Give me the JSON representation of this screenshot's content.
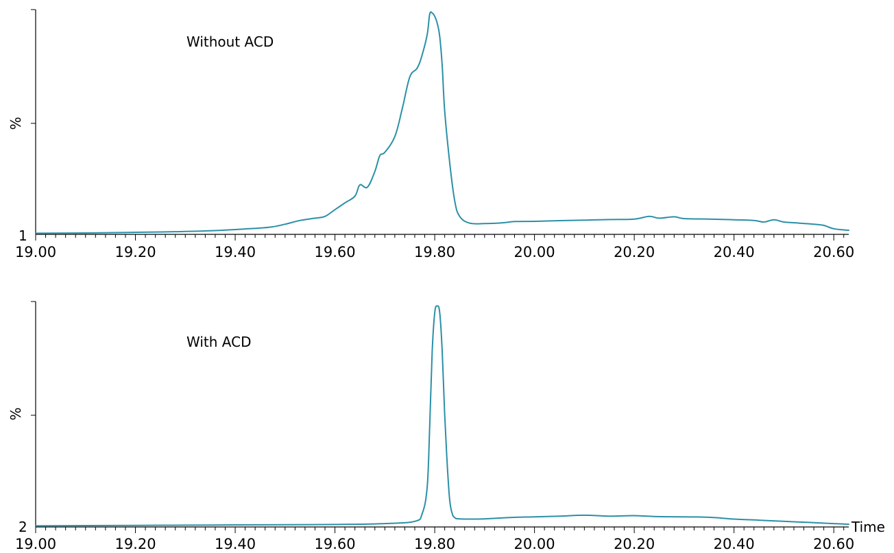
{
  "colors": {
    "trace": "#2a8fa6",
    "axis": "#000000"
  },
  "chart_data": [
    {
      "type": "line",
      "annotation": "Without ACD",
      "ylabel": "%",
      "corner_label": "1",
      "xlabel": "",
      "xlim": [
        19.0,
        20.63
      ],
      "ylim": [
        0,
        100
      ],
      "x_tick_labels": [
        "19.00",
        "19.20",
        "19.40",
        "19.60",
        "19.80",
        "20.00",
        "20.20",
        "20.40",
        "20.60"
      ],
      "x_tick_values": [
        19.0,
        19.2,
        19.4,
        19.6,
        19.8,
        20.0,
        20.2,
        20.4,
        20.6
      ],
      "series": [
        {
          "x": [
            19.0,
            19.1,
            19.2,
            19.28,
            19.35,
            19.42,
            19.47,
            19.5,
            19.53,
            19.56,
            19.58,
            19.6,
            19.62,
            19.64,
            19.65,
            19.665,
            19.68,
            19.69,
            19.7,
            19.72,
            19.735,
            19.75,
            19.765,
            19.775,
            19.785,
            19.79,
            19.795,
            19.8,
            19.805,
            19.81,
            19.815,
            19.82,
            19.83,
            19.84,
            19.85,
            19.87,
            19.9,
            19.92,
            19.94,
            19.96,
            20.0,
            20.05,
            20.1,
            20.15,
            20.2,
            20.23,
            20.25,
            20.28,
            20.3,
            20.35,
            20.4,
            20.44,
            20.46,
            20.48,
            20.5,
            20.53,
            20.56,
            20.58,
            20.6,
            20.63
          ],
          "values": [
            0.5,
            0.6,
            0.9,
            1.2,
            1.6,
            2.4,
            3.2,
            4.5,
            6.2,
            7.2,
            8.0,
            11.0,
            14.0,
            17.0,
            22.0,
            21.0,
            28.0,
            35.0,
            36.5,
            43.5,
            56.0,
            70.0,
            74.0,
            80.0,
            89.0,
            98.0,
            98.5,
            97.0,
            94.0,
            88.0,
            75.0,
            55.0,
            32.0,
            15.0,
            8.0,
            5.0,
            4.8,
            4.9,
            5.2,
            5.7,
            5.8,
            6.1,
            6.3,
            6.6,
            6.8,
            8.0,
            7.2,
            7.8,
            7.0,
            6.8,
            6.5,
            6.2,
            5.5,
            6.5,
            5.5,
            5.0,
            4.5,
            4.0,
            2.5,
            1.8
          ]
        }
      ]
    },
    {
      "type": "line",
      "annotation": "With ACD",
      "ylabel": "%",
      "corner_label": "2",
      "xlabel": "Time",
      "xlim": [
        19.0,
        20.63
      ],
      "ylim": [
        0,
        100
      ],
      "x_tick_labels": [
        "19.00",
        "19.20",
        "19.40",
        "19.60",
        "19.80",
        "20.00",
        "20.20",
        "20.40",
        "20.60"
      ],
      "x_tick_values": [
        19.0,
        19.2,
        19.4,
        19.6,
        19.8,
        20.0,
        20.2,
        20.4,
        20.6
      ],
      "series": [
        {
          "x": [
            19.0,
            19.1,
            19.2,
            19.3,
            19.4,
            19.5,
            19.6,
            19.7,
            19.76,
            19.775,
            19.785,
            19.79,
            19.795,
            19.8,
            19.805,
            19.81,
            19.815,
            19.82,
            19.825,
            19.83,
            19.835,
            19.84,
            19.85,
            19.9,
            19.95,
            20.0,
            20.05,
            20.1,
            20.15,
            20.2,
            20.25,
            20.3,
            20.35,
            20.4,
            20.45,
            20.5,
            20.55,
            20.6,
            20.63
          ],
          "values": [
            0.5,
            0.6,
            0.7,
            0.8,
            0.9,
            1.0,
            1.1,
            1.5,
            2.5,
            6.0,
            18.0,
            45.0,
            78.0,
            95.0,
            98.0,
            95.0,
            78.0,
            50.0,
            28.0,
            12.0,
            6.0,
            4.2,
            3.6,
            3.6,
            4.2,
            4.5,
            4.8,
            5.2,
            4.8,
            5.0,
            4.6,
            4.5,
            4.3,
            3.5,
            3.0,
            2.5,
            2.0,
            1.5,
            1.2
          ]
        }
      ]
    }
  ]
}
